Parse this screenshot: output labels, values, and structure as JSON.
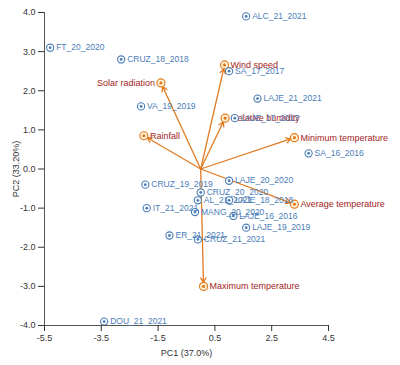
{
  "chart_data": {
    "type": "biplot",
    "x_label": "PC1 (37.0%)",
    "y_label": "PC2 (33.20%)",
    "xlim": [
      -5.5,
      4.5
    ],
    "xticks": [
      -5.5,
      -3.5,
      -1.5,
      0.5,
      2.5,
      4.5
    ],
    "ylim": [
      -4.0,
      4.0
    ],
    "yticks": [
      {
        "value": -4.0,
        "label": "-4.0"
      },
      {
        "value": -3.0,
        "label": "-3.0"
      },
      {
        "value": -2.0,
        "label": "-2.0"
      },
      {
        "value": -1.0,
        "label": "-1.0"
      },
      {
        "value": 0.0,
        "label": "0.0"
      },
      {
        "value": 1.0,
        "label": "1.0"
      },
      {
        "value": 2.0,
        "label": "2.0"
      },
      {
        "value": 3.0,
        "label": "3.0"
      },
      {
        "value": 4.0,
        "label": "4.0"
      }
    ],
    "grid": false,
    "points": {
      "color": "#4a7db8",
      "labels": [
        "ALC_21_2021",
        "SA_17_2017",
        "LAJE_21_2021",
        "LAJE_17_2017",
        "SA_16_2016",
        "FT_20_2020",
        "CRUZ_18_2018",
        "VA_19_2019",
        "CRUZ_19_2019",
        "CRUZ_20_2020",
        "LAJE_20_2020",
        "AL_21_2021",
        "IT_21_2021",
        "MANG_20_2020",
        "LAJE_18_2018",
        "LAJE_16_2016",
        "LAJE_19_2019",
        "CRUZ_21_2021",
        "ER_21_2021",
        "DOU_21_2021"
      ],
      "x": [
        1.6,
        1.0,
        2.0,
        1.2,
        3.8,
        -5.3,
        -2.8,
        -2.1,
        -1.95,
        0.0,
        1.0,
        -0.1,
        -1.9,
        -0.2,
        1.0,
        1.15,
        1.6,
        -0.1,
        -1.1,
        -3.4
      ],
      "y": [
        3.9,
        2.5,
        1.8,
        1.3,
        0.4,
        3.1,
        2.8,
        1.6,
        -0.4,
        -0.6,
        -0.3,
        -0.8,
        -1.0,
        -1.1,
        -0.8,
        -1.2,
        -1.5,
        -1.8,
        -1.7,
        -3.9
      ]
    },
    "vectors": {
      "color": "#e07b22",
      "label_color": "#a3221c",
      "labels": [
        "Wind speed",
        "Solar radiation",
        "Relative humidity",
        "Minimum temperature",
        "Rainfall",
        "Average temperature",
        "Maximum temperature"
      ],
      "x": [
        0.84,
        -1.4,
        0.86,
        3.3,
        -2.0,
        3.3,
        0.1
      ],
      "y": [
        2.66,
        2.2,
        1.3,
        0.8,
        0.85,
        -0.9,
        -3.0
      ]
    }
  }
}
